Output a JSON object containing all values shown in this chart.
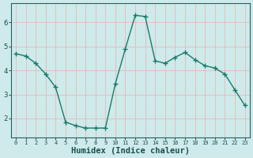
{
  "x": [
    0,
    1,
    2,
    3,
    4,
    5,
    6,
    7,
    8,
    9,
    10,
    11,
    12,
    13,
    14,
    15,
    16,
    17,
    18,
    19,
    20,
    21,
    22,
    23
  ],
  "y": [
    4.7,
    4.6,
    4.3,
    3.85,
    3.3,
    1.85,
    1.7,
    1.6,
    1.6,
    1.6,
    3.45,
    4.9,
    6.3,
    6.25,
    4.4,
    4.3,
    4.55,
    4.75,
    4.45,
    4.2,
    4.1,
    3.85,
    3.2,
    2.55
  ],
  "line_color": "#1a7a6a",
  "marker": "+",
  "marker_size": 4,
  "bg_color": "#ceeaea",
  "grid_color": "#e8b8b8",
  "axis_color": "#2a6060",
  "tick_color": "#1a5050",
  "xlabel": "Humidex (Indice chaleur)",
  "xlabel_fontsize": 7.5,
  "ylim": [
    1.2,
    6.8
  ],
  "xlim": [
    -0.5,
    23.5
  ],
  "yticks": [
    2,
    3,
    4,
    5,
    6
  ],
  "xticks": [
    0,
    1,
    2,
    3,
    4,
    5,
    6,
    7,
    8,
    9,
    10,
    11,
    12,
    13,
    14,
    15,
    16,
    17,
    18,
    19,
    20,
    21,
    22,
    23
  ],
  "xtick_labels": [
    "0",
    "1",
    "2",
    "3",
    "4",
    "5",
    "6",
    "7",
    "8",
    "9",
    "10",
    "11",
    "12",
    "13",
    "14",
    "15",
    "16",
    "17",
    "18",
    "19",
    "20",
    "21",
    "22",
    "23"
  ],
  "line_width": 1.0
}
